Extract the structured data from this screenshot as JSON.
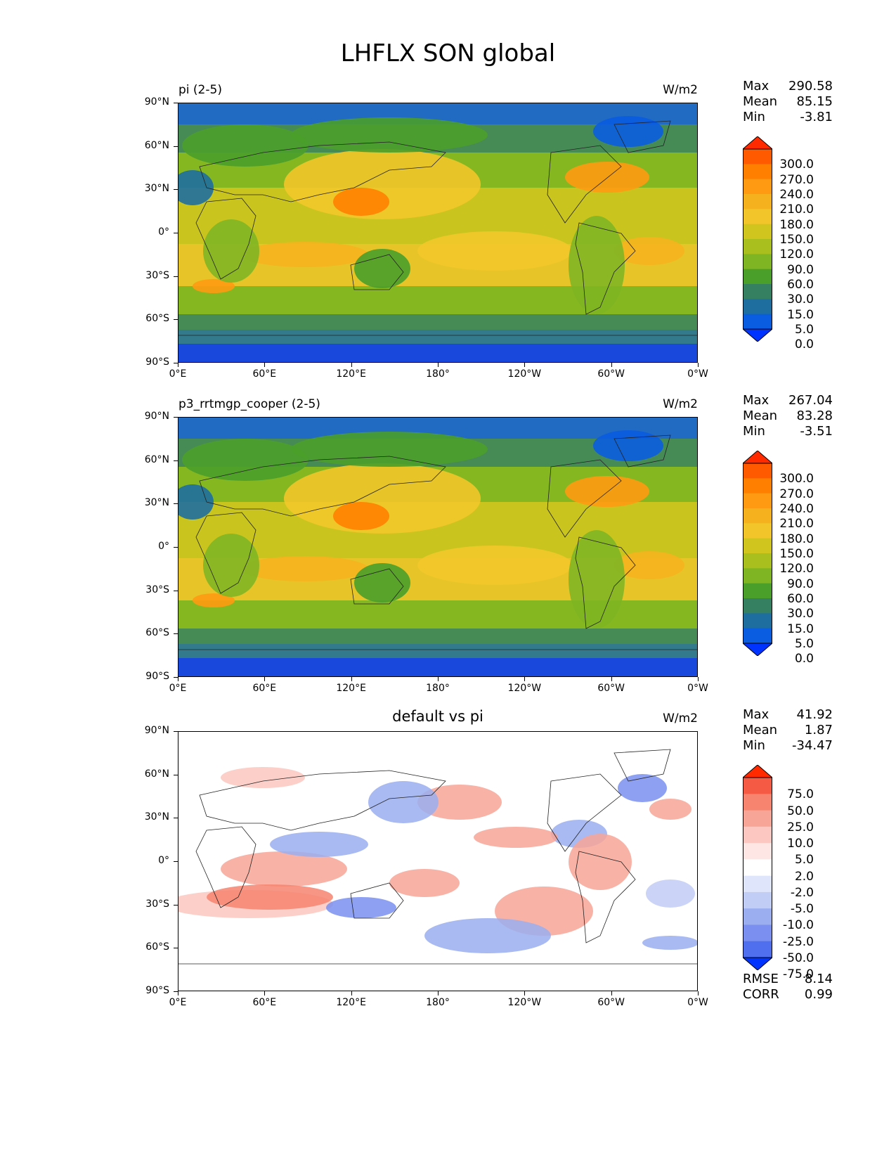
{
  "figure_title": "LHFLX SON global",
  "x_ticks": [
    "0°E",
    "60°E",
    "120°E",
    "180°",
    "120°W",
    "60°W",
    "0°W"
  ],
  "y_ticks": [
    "90°N",
    "60°N",
    "30°N",
    "0°",
    "30°S",
    "60°S",
    "90°S"
  ],
  "panels": [
    {
      "label": "pi (2-5)",
      "units": "W/m2",
      "stats": {
        "max_label": "Max",
        "max": "290.58",
        "mean_label": "Mean",
        "mean": "85.15",
        "min_label": "Min",
        "min": "-3.81"
      },
      "levels": [
        "300.0",
        "270.0",
        "240.0",
        "210.0",
        "180.0",
        "150.0",
        "120.0",
        "90.0",
        "60.0",
        "30.0",
        "15.0",
        "5.0",
        "0.0"
      ],
      "colors": [
        "#ff2a00",
        "#ff5a00",
        "#ff7f00",
        "#ff9a12",
        "#f5b21e",
        "#f2c62a",
        "#cfc51e",
        "#a8bf1e",
        "#7fb522",
        "#4a9e2a",
        "#358060",
        "#1e6ea0",
        "#0a5ce0",
        "#0033ff"
      ]
    },
    {
      "label": "p3_rrtmgp_cooper (2-5)",
      "units": "W/m2",
      "stats": {
        "max_label": "Max",
        "max": "267.04",
        "mean_label": "Mean",
        "mean": "83.28",
        "min_label": "Min",
        "min": "-3.51"
      },
      "levels": [
        "300.0",
        "270.0",
        "240.0",
        "210.0",
        "180.0",
        "150.0",
        "120.0",
        "90.0",
        "60.0",
        "30.0",
        "15.0",
        "5.0",
        "0.0"
      ],
      "colors": [
        "#ff2a00",
        "#ff5a00",
        "#ff7f00",
        "#ff9a12",
        "#f5b21e",
        "#f2c62a",
        "#cfc51e",
        "#a8bf1e",
        "#7fb522",
        "#4a9e2a",
        "#358060",
        "#1e6ea0",
        "#0a5ce0",
        "#0033ff"
      ]
    },
    {
      "label": "default vs pi",
      "units": "W/m2",
      "stats": {
        "max_label": "Max",
        "max": "41.92",
        "mean_label": "Mean",
        "mean": "1.87",
        "min_label": "Min",
        "min": "-34.47"
      },
      "levels": [
        "75.0",
        "50.0",
        "25.0",
        "10.0",
        "5.0",
        "2.0",
        "-2.0",
        "-5.0",
        "-10.0",
        "-25.0",
        "-50.0",
        "-75.0"
      ],
      "colors": [
        "#ff2a00",
        "#f55a45",
        "#f6846e",
        "#f7a597",
        "#fbc7c0",
        "#fde6e3",
        "#ffffff",
        "#dfe5fb",
        "#c2cdf6",
        "#9aaef0",
        "#7a8ff0",
        "#4f6fee",
        "#0033ff"
      ],
      "rmse_label": "RMSE",
      "rmse": "8.14",
      "corr_label": "CORR",
      "corr": "0.99"
    }
  ]
}
